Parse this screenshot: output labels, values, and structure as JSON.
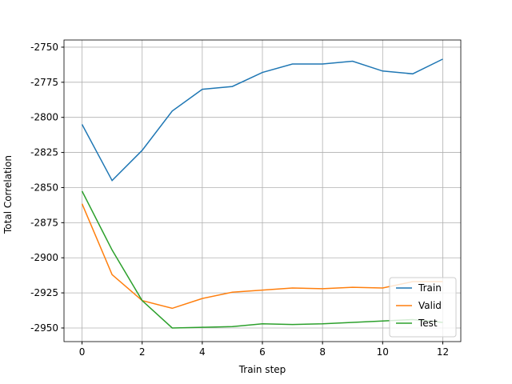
{
  "chart_data": {
    "type": "line",
    "x": [
      0,
      1,
      2,
      3,
      4,
      5,
      6,
      7,
      8,
      9,
      10,
      11,
      12
    ],
    "series": [
      {
        "name": "Train",
        "color": "#1f77b4",
        "values": [
          -2805,
          -2845,
          -2823.5,
          -2795.5,
          -2780,
          -2778,
          -2768,
          -2762,
          -2762,
          -2760,
          -2767,
          -2769,
          -2758.5
        ]
      },
      {
        "name": "Valid",
        "color": "#ff7f0e",
        "values": [
          -2861.5,
          -2912,
          -2930.5,
          -2936,
          -2929,
          -2924.5,
          -2923,
          -2921.5,
          -2922,
          -2921,
          -2921.5,
          -2917,
          -2917
        ]
      },
      {
        "name": "Test",
        "color": "#2ca02c",
        "values": [
          -2852.5,
          -2894.5,
          -2930.5,
          -2950,
          -2949.5,
          -2949,
          -2947,
          -2947.5,
          -2947,
          -2946,
          -2945,
          -2944,
          -2946
        ]
      }
    ],
    "xlabel": "Train step",
    "ylabel": "Total Correlation",
    "xlim": [
      -0.6,
      12.6
    ],
    "xticks": [
      0,
      2,
      4,
      6,
      8,
      10,
      12
    ],
    "ylim": [
      -2959.7,
      -2744.9
    ],
    "yticks": [
      -2950,
      -2925,
      -2900,
      -2875,
      -2850,
      -2825,
      -2800,
      -2775,
      -2750
    ],
    "grid": true,
    "legend": "lower right"
  }
}
